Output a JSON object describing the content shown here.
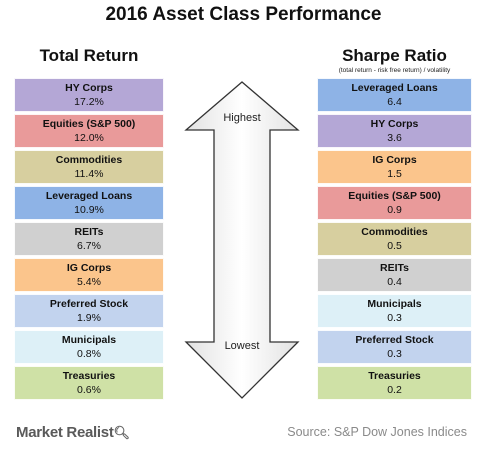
{
  "title": "2016 Asset Class Performance",
  "chart_data": [
    {
      "type": "table",
      "title": "Total Return",
      "rows": [
        {
          "name": "HY Corps",
          "value": "17.2%",
          "color": "#b4a7d6"
        },
        {
          "name": "Equities (S&P 500)",
          "value": "12.0%",
          "color": "#e99a9a"
        },
        {
          "name": "Commodities",
          "value": "11.4%",
          "color": "#d7cf9f"
        },
        {
          "name": "Leveraged Loans",
          "value": "10.9%",
          "color": "#8eb3e6"
        },
        {
          "name": "REITs",
          "value": "6.7%",
          "color": "#d0d0d0"
        },
        {
          "name": "IG Corps",
          "value": "5.4%",
          "color": "#fbc58c"
        },
        {
          "name": "Preferred Stock",
          "value": "1.9%",
          "color": "#c2d3ee"
        },
        {
          "name": "Municipals",
          "value": "0.8%",
          "color": "#ddf0f7"
        },
        {
          "name": "Treasuries",
          "value": "0.6%",
          "color": "#cfe1a6"
        }
      ]
    },
    {
      "type": "table",
      "title": "Sharpe Ratio",
      "subtitle": "(total return - risk free return) / volatility",
      "rows": [
        {
          "name": "Leveraged Loans",
          "value": "6.4",
          "color": "#8eb3e6"
        },
        {
          "name": "HY Corps",
          "value": "3.6",
          "color": "#b4a7d6"
        },
        {
          "name": "IG Corps",
          "value": "1.5",
          "color": "#fbc58c"
        },
        {
          "name": "Equities (S&P 500)",
          "value": "0.9",
          "color": "#e99a9a"
        },
        {
          "name": "Commodities",
          "value": "0.5",
          "color": "#d7cf9f"
        },
        {
          "name": "REITs",
          "value": "0.4",
          "color": "#d0d0d0"
        },
        {
          "name": "Municipals",
          "value": "0.3",
          "color": "#ddf0f7"
        },
        {
          "name": "Preferred Stock",
          "value": "0.3",
          "color": "#c2d3ee"
        },
        {
          "name": "Treasuries",
          "value": "0.2",
          "color": "#cfe1a6"
        }
      ]
    }
  ],
  "arrow": {
    "top_label": "Highest",
    "bottom_label": "Lowest"
  },
  "logo": {
    "text": "Market Realist",
    "icon": "magnifier-icon"
  },
  "source": "Source: S&P Dow Jones Indices"
}
